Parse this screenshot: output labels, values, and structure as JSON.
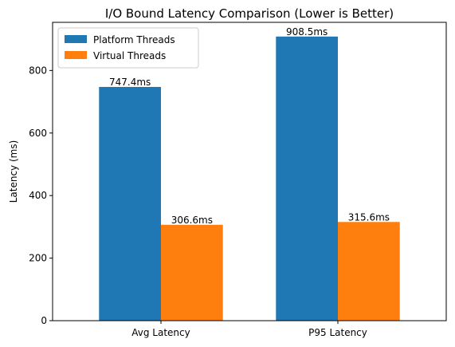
{
  "chart_data": {
    "type": "bar",
    "title": "I/O Bound Latency Comparison (Lower is Better)",
    "xlabel": "",
    "ylabel": "Latency (ms)",
    "categories": [
      "Avg Latency",
      "P95 Latency"
    ],
    "series": [
      {
        "name": "Platform Threads",
        "color": "#1f77b4",
        "values": [
          747.4,
          908.5
        ],
        "labels": [
          "747.4ms",
          "908.5ms"
        ]
      },
      {
        "name": "Virtual Threads",
        "color": "#ff7f0e",
        "values": [
          306.6,
          315.6
        ],
        "labels": [
          "306.6ms",
          "315.6ms"
        ]
      }
    ],
    "ylim": [
      0,
      953.925
    ],
    "yticks": [
      0,
      200,
      400,
      600,
      800
    ],
    "ytick_labels": [
      "0",
      "200",
      "400",
      "600",
      "800"
    ],
    "grid": false,
    "legend_position": "upper-left"
  }
}
